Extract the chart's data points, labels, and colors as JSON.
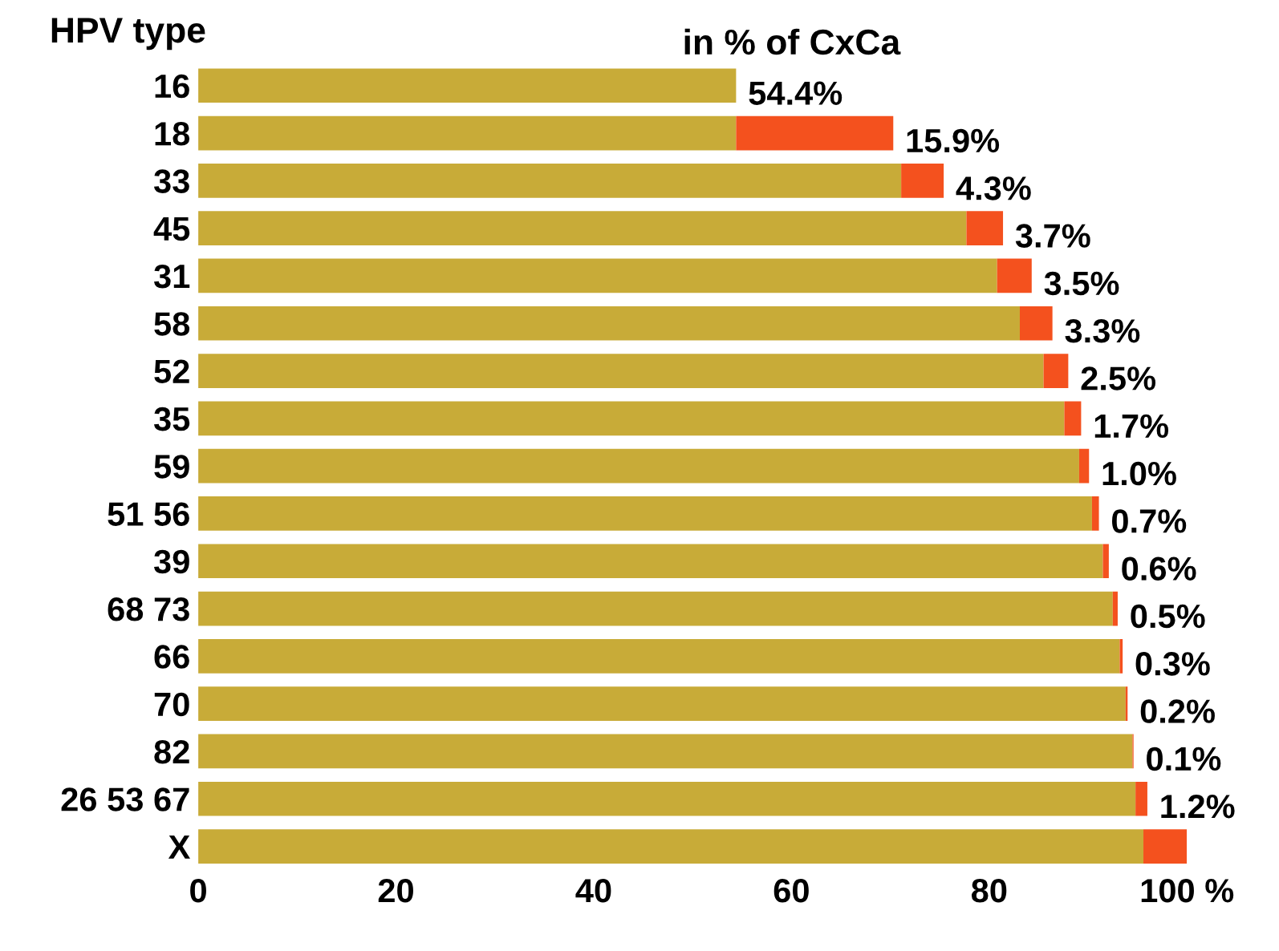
{
  "chart_data": {
    "type": "bar",
    "orientation": "horizontal",
    "stacked": true,
    "title": "in % of CxCa",
    "ylabel": "HPV type",
    "categories": [
      "16",
      "18",
      "33",
      "45",
      "31",
      "58",
      "52",
      "35",
      "59",
      "51 56",
      "39",
      "68 73",
      "66",
      "70",
      "82",
      "26 53 67",
      "X"
    ],
    "series": [
      {
        "color": "#c8ab38",
        "values": [
          54.4,
          54.4,
          71.1,
          77.7,
          80.8,
          83.1,
          85.5,
          87.6,
          89.1,
          90.4,
          91.5,
          92.5,
          93.2,
          93.8,
          94.5,
          94.8,
          95.6
        ],
        "value_labels": [
          "54.4%",
          null,
          null,
          null,
          null,
          null,
          null,
          null,
          null,
          null,
          null,
          null,
          null,
          null,
          null,
          null,
          null
        ]
      },
      {
        "color": "#f4511e",
        "values": [
          null,
          15.9,
          4.3,
          3.7,
          3.5,
          3.3,
          2.5,
          1.7,
          1.0,
          0.7,
          0.6,
          0.5,
          0.3,
          0.2,
          0.1,
          1.2,
          4.4
        ],
        "value_labels": [
          null,
          "15.9%",
          "4.3%",
          "3.7%",
          "3.5%",
          "3.3%",
          "2.5%",
          "1.7%",
          "1.0%",
          "0.7%",
          "0.6%",
          "0.5%",
          "0.3%",
          "0.2%",
          "0.1%",
          "1.2%",
          null
        ]
      }
    ],
    "xlim": [
      0,
      100
    ],
    "xticks": [
      0,
      20,
      40,
      60,
      80,
      {
        "value": 100,
        "label": "100 %"
      }
    ],
    "grid": false,
    "legend": false
  }
}
